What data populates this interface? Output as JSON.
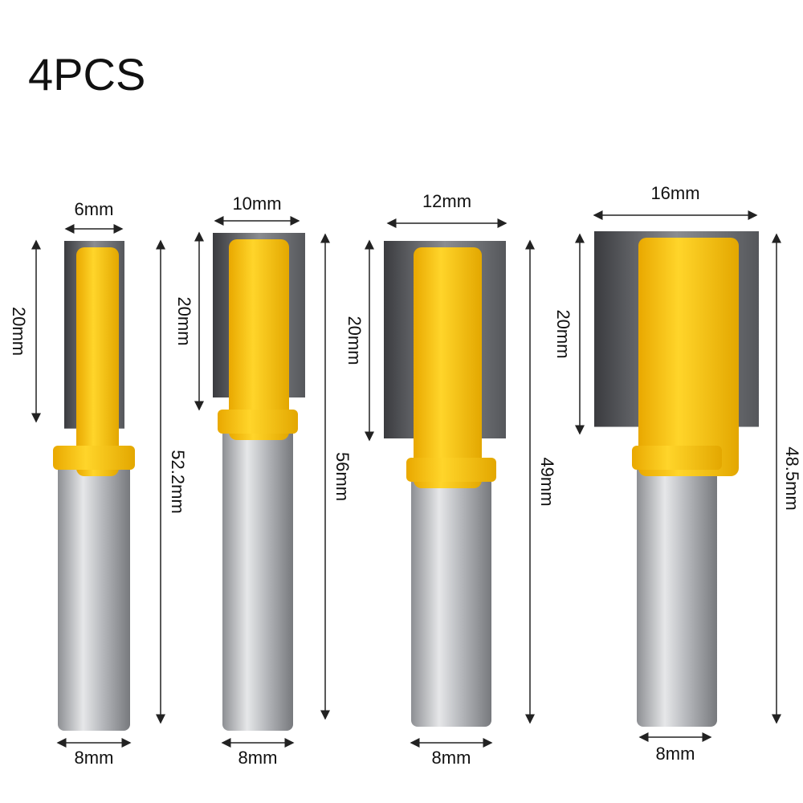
{
  "title": "4PCS",
  "bits": [
    {
      "cut_width": "6mm",
      "cut_length": "20mm",
      "total_length": "52.2mm",
      "shank": "8mm"
    },
    {
      "cut_width": "10mm",
      "cut_length": "20mm",
      "total_length": "56mm",
      "shank": "8mm"
    },
    {
      "cut_width": "12mm",
      "cut_length": "20mm",
      "total_length": "49mm",
      "shank": "8mm"
    },
    {
      "cut_width": "16mm",
      "cut_length": "20mm",
      "total_length": "48.5mm",
      "shank": "8mm"
    }
  ]
}
